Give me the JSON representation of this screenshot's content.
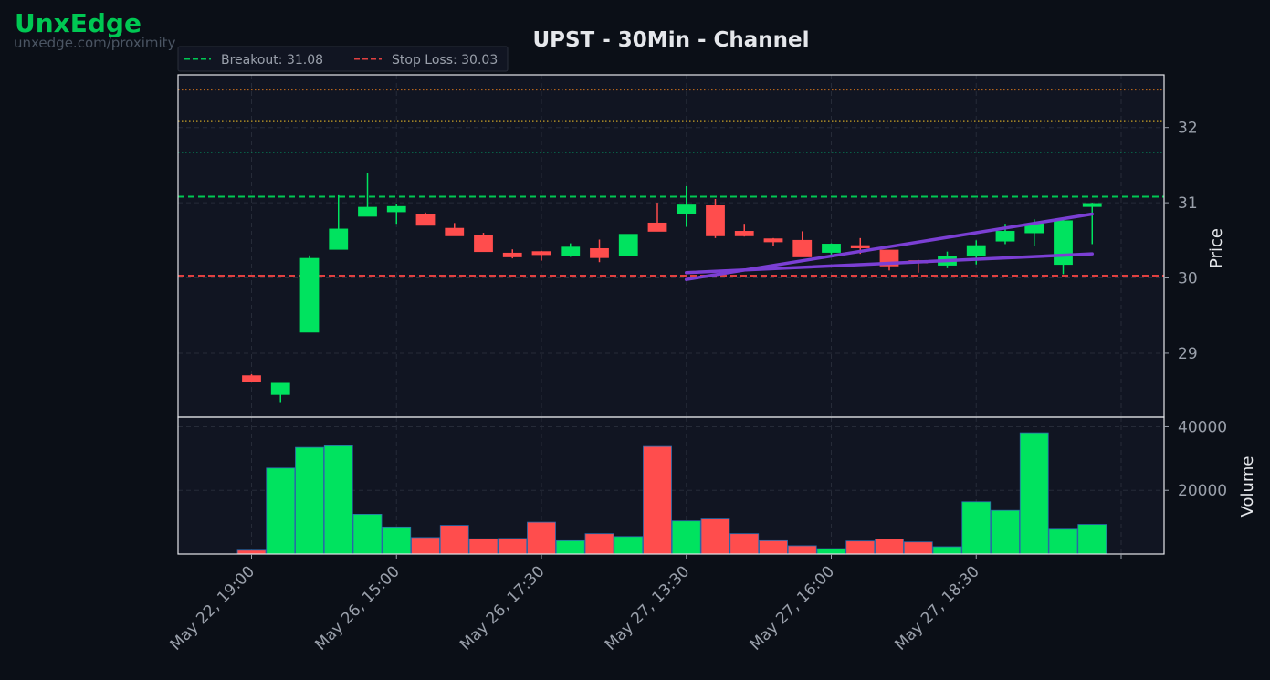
{
  "brand": {
    "name": "UnxEdge",
    "url": "unxedge.com/proximity",
    "color": "#00c853"
  },
  "colors": {
    "background": "#0b0f17",
    "panel": "#111522",
    "up": "#00e35f",
    "down": "#ff4d4d",
    "breakout": "#00c853",
    "stop_loss": "#e04040",
    "channel": "#7b3fd4",
    "text": "#e5e7eb",
    "tick_text": "#9aa0ab"
  },
  "chart_data": {
    "type": "candlestick",
    "title": "UPST - 30Min - Channel",
    "legend": {
      "placement": "top-left",
      "entries": [
        "Breakout: 31.08",
        "Stop Loss: 30.03"
      ]
    },
    "ylabel_price": "Price",
    "ylabel_volume": "Volume",
    "price_ylim": [
      28.15,
      32.7
    ],
    "volume_ylim": [
      0,
      43000
    ],
    "price_ticks": [
      29,
      30,
      31,
      32
    ],
    "volume_ticks": [
      20000,
      40000
    ],
    "grid": true,
    "x_tick_labels": [
      "May 22, 19:00",
      "May 26, 15:00",
      "May 26, 17:30",
      "May 27, 13:30",
      "May 27, 16:00",
      "May 27, 18:30"
    ],
    "x_tick_bar_index": [
      0,
      5,
      10,
      15,
      20,
      25
    ],
    "lines": {
      "breakout": 31.08,
      "stop_loss": 30.03,
      "reference_levels": [
        {
          "value": 32.5,
          "color": "#b5651d"
        },
        {
          "value": 32.08,
          "color": "#c9a227"
        },
        {
          "value": 31.67,
          "color": "#00a86b"
        }
      ]
    },
    "channel": {
      "upper": {
        "from": [
          15,
          29.98
        ],
        "to": [
          29,
          30.85
        ]
      },
      "lower": {
        "from": [
          15,
          30.07
        ],
        "to": [
          29,
          30.32
        ]
      }
    },
    "candles": [
      {
        "o": 28.7,
        "h": 28.72,
        "l": 28.62,
        "c": 28.62,
        "v": 1200
      },
      {
        "o": 28.45,
        "h": 28.6,
        "l": 28.35,
        "c": 28.6,
        "v": 27000
      },
      {
        "o": 29.28,
        "h": 30.3,
        "l": 29.28,
        "c": 30.26,
        "v": 33500
      },
      {
        "o": 30.38,
        "h": 31.1,
        "l": 30.38,
        "c": 30.65,
        "v": 34000
      },
      {
        "o": 30.82,
        "h": 31.4,
        "l": 30.82,
        "c": 30.94,
        "v": 12500
      },
      {
        "o": 30.88,
        "h": 30.98,
        "l": 30.72,
        "c": 30.95,
        "v": 8500
      },
      {
        "o": 30.85,
        "h": 30.87,
        "l": 30.7,
        "c": 30.7,
        "v": 5200
      },
      {
        "o": 30.66,
        "h": 30.73,
        "l": 30.56,
        "c": 30.56,
        "v": 9000
      },
      {
        "o": 30.57,
        "h": 30.6,
        "l": 30.35,
        "c": 30.35,
        "v": 4800
      },
      {
        "o": 30.33,
        "h": 30.38,
        "l": 30.26,
        "c": 30.28,
        "v": 4900
      },
      {
        "o": 30.35,
        "h": 30.36,
        "l": 30.23,
        "c": 30.31,
        "v": 10000
      },
      {
        "o": 30.3,
        "h": 30.46,
        "l": 30.28,
        "c": 30.41,
        "v": 4200
      },
      {
        "o": 30.39,
        "h": 30.51,
        "l": 30.21,
        "c": 30.27,
        "v": 6400
      },
      {
        "o": 30.3,
        "h": 30.58,
        "l": 30.3,
        "c": 30.58,
        "v": 5500
      },
      {
        "o": 30.73,
        "h": 31.0,
        "l": 30.62,
        "c": 30.62,
        "v": 33800
      },
      {
        "o": 30.85,
        "h": 31.22,
        "l": 30.68,
        "c": 30.97,
        "v": 10400
      },
      {
        "o": 30.96,
        "h": 31.05,
        "l": 30.53,
        "c": 30.56,
        "v": 11000
      },
      {
        "o": 30.62,
        "h": 30.72,
        "l": 30.55,
        "c": 30.56,
        "v": 6400
      },
      {
        "o": 30.52,
        "h": 30.53,
        "l": 30.42,
        "c": 30.48,
        "v": 4200
      },
      {
        "o": 30.5,
        "h": 30.62,
        "l": 30.28,
        "c": 30.28,
        "v": 2600
      },
      {
        "o": 30.34,
        "h": 30.46,
        "l": 30.28,
        "c": 30.45,
        "v": 1700
      },
      {
        "o": 30.43,
        "h": 30.53,
        "l": 30.32,
        "c": 30.4,
        "v": 4100
      },
      {
        "o": 30.37,
        "h": 30.37,
        "l": 30.1,
        "c": 30.16,
        "v": 4700
      },
      {
        "o": 30.23,
        "h": 30.24,
        "l": 30.07,
        "c": 30.2,
        "v": 3800
      },
      {
        "o": 30.17,
        "h": 30.35,
        "l": 30.13,
        "c": 30.29,
        "v": 2300
      },
      {
        "o": 30.29,
        "h": 30.5,
        "l": 30.18,
        "c": 30.43,
        "v": 16400
      },
      {
        "o": 30.49,
        "h": 30.72,
        "l": 30.45,
        "c": 30.62,
        "v": 13700
      },
      {
        "o": 30.6,
        "h": 30.78,
        "l": 30.42,
        "c": 30.72,
        "v": 38100
      },
      {
        "o": 30.18,
        "h": 30.78,
        "l": 30.05,
        "c": 30.76,
        "v": 7800
      },
      {
        "o": 30.95,
        "h": 31.0,
        "l": 30.45,
        "c": 30.99,
        "v": 9300
      }
    ]
  }
}
